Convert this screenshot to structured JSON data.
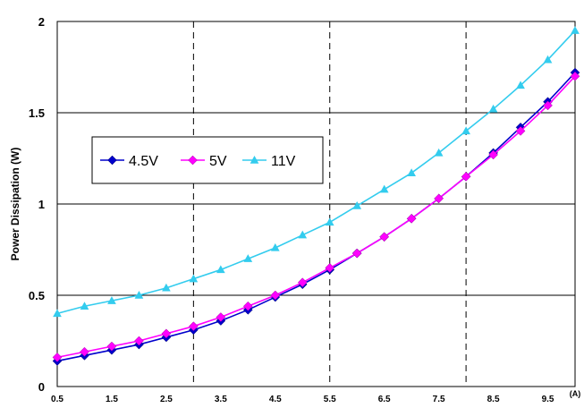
{
  "chart_data": {
    "type": "line",
    "title": "",
    "xlabel": "(A)",
    "ylabel": "Power Dissipation (W)",
    "xlim": [
      0.5,
      10
    ],
    "ylim": [
      0,
      2
    ],
    "x_ticks": [
      "0.5",
      "1.5",
      "2.5",
      "3.5",
      "4.5",
      "5.5",
      "6.5",
      "7.5",
      "8.5",
      "9.5"
    ],
    "y_ticks": [
      "0",
      "0.5",
      "1",
      "1.5",
      "2"
    ],
    "grid": {
      "horizontal": "solid",
      "vertical": "dashed",
      "vertical_at": [
        3,
        5.5,
        8
      ]
    },
    "legend_position": "upper-left",
    "x": [
      0.5,
      1,
      1.5,
      2,
      2.5,
      3,
      3.5,
      4,
      4.5,
      5,
      5.5,
      6,
      6.5,
      7,
      7.5,
      8,
      8.5,
      9,
      9.5,
      10
    ],
    "series": [
      {
        "name": "4.5V",
        "color": "#0000CC",
        "marker": "diamond",
        "values": [
          0.14,
          0.17,
          0.2,
          0.23,
          0.27,
          0.31,
          0.36,
          0.42,
          0.49,
          0.56,
          0.64,
          0.73,
          0.82,
          0.92,
          1.03,
          1.15,
          1.28,
          1.42,
          1.56,
          1.72
        ]
      },
      {
        "name": "5V",
        "color": "#FF00FF",
        "marker": "diamond",
        "values": [
          0.16,
          0.19,
          0.22,
          0.25,
          0.29,
          0.33,
          0.38,
          0.44,
          0.5,
          0.57,
          0.65,
          0.73,
          0.82,
          0.92,
          1.03,
          1.15,
          1.27,
          1.4,
          1.54,
          1.7
        ]
      },
      {
        "name": "11V",
        "color": "#33CCEE",
        "marker": "triangle",
        "values": [
          0.4,
          0.44,
          0.47,
          0.5,
          0.54,
          0.59,
          0.64,
          0.7,
          0.76,
          0.83,
          0.9,
          0.99,
          1.08,
          1.17,
          1.28,
          1.4,
          1.52,
          1.65,
          1.79,
          1.95
        ]
      }
    ]
  }
}
